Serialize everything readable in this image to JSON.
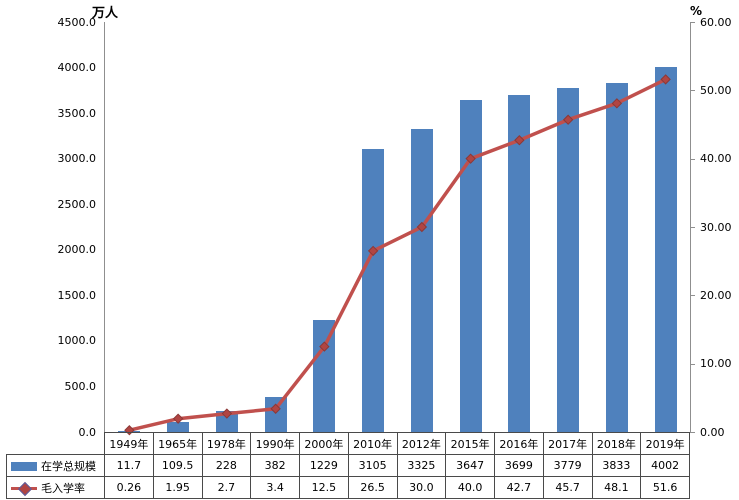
{
  "chart_data": {
    "type": "bar",
    "subtype": "composite-bar-line",
    "categories": [
      "1949年",
      "1965年",
      "1978年",
      "1990年",
      "2000年",
      "2010年",
      "2012年",
      "2015年",
      "2016年",
      "2017年",
      "2018年",
      "2019年"
    ],
    "series": [
      {
        "name": "在学总规模",
        "type": "bar",
        "axis": "left",
        "color": "#4F81BD",
        "values": [
          11.7,
          109.5,
          228,
          382,
          1229,
          3105,
          3325,
          3647,
          3699,
          3779,
          3833,
          4002
        ],
        "display": [
          "11.7",
          "109.5",
          "228",
          "382",
          "1229",
          "3105",
          "3325",
          "3647",
          "3699",
          "3779",
          "3833",
          "4002"
        ]
      },
      {
        "name": "毛入学率",
        "type": "line",
        "axis": "right",
        "color": "#C0504D",
        "marker": "diamond",
        "values": [
          0.26,
          1.95,
          2.7,
          3.4,
          12.5,
          26.5,
          30.0,
          40.0,
          42.7,
          45.7,
          48.1,
          51.6
        ],
        "display": [
          "0.26",
          "1.95",
          "2.7",
          "3.4",
          "12.5",
          "26.5",
          "30.0",
          "40.0",
          "42.7",
          "45.7",
          "48.1",
          "51.6"
        ]
      }
    ],
    "left_axis": {
      "title": "万人",
      "min": 0,
      "max": 4500,
      "step": 500,
      "tick_labels": [
        "4500.0",
        "4000.0",
        "3500.0",
        "3000.0",
        "2500.0",
        "2000.0",
        "1500.0",
        "1000.0",
        "500.0",
        "0.0"
      ]
    },
    "right_axis": {
      "title": "%",
      "min": 0,
      "max": 60,
      "step": 10,
      "tick_labels": [
        "60.00",
        "50.00",
        "40.00",
        "30.00",
        "20.00",
        "10.00",
        "0.00"
      ]
    },
    "grid": false,
    "legend_position": "data-table-left",
    "colors": {
      "bar": "#4F81BD",
      "line": "#C0504D",
      "marker_fill": "#B04543",
      "axis_line": "#8f8f8f",
      "table_border": "#4a4a4a"
    }
  }
}
